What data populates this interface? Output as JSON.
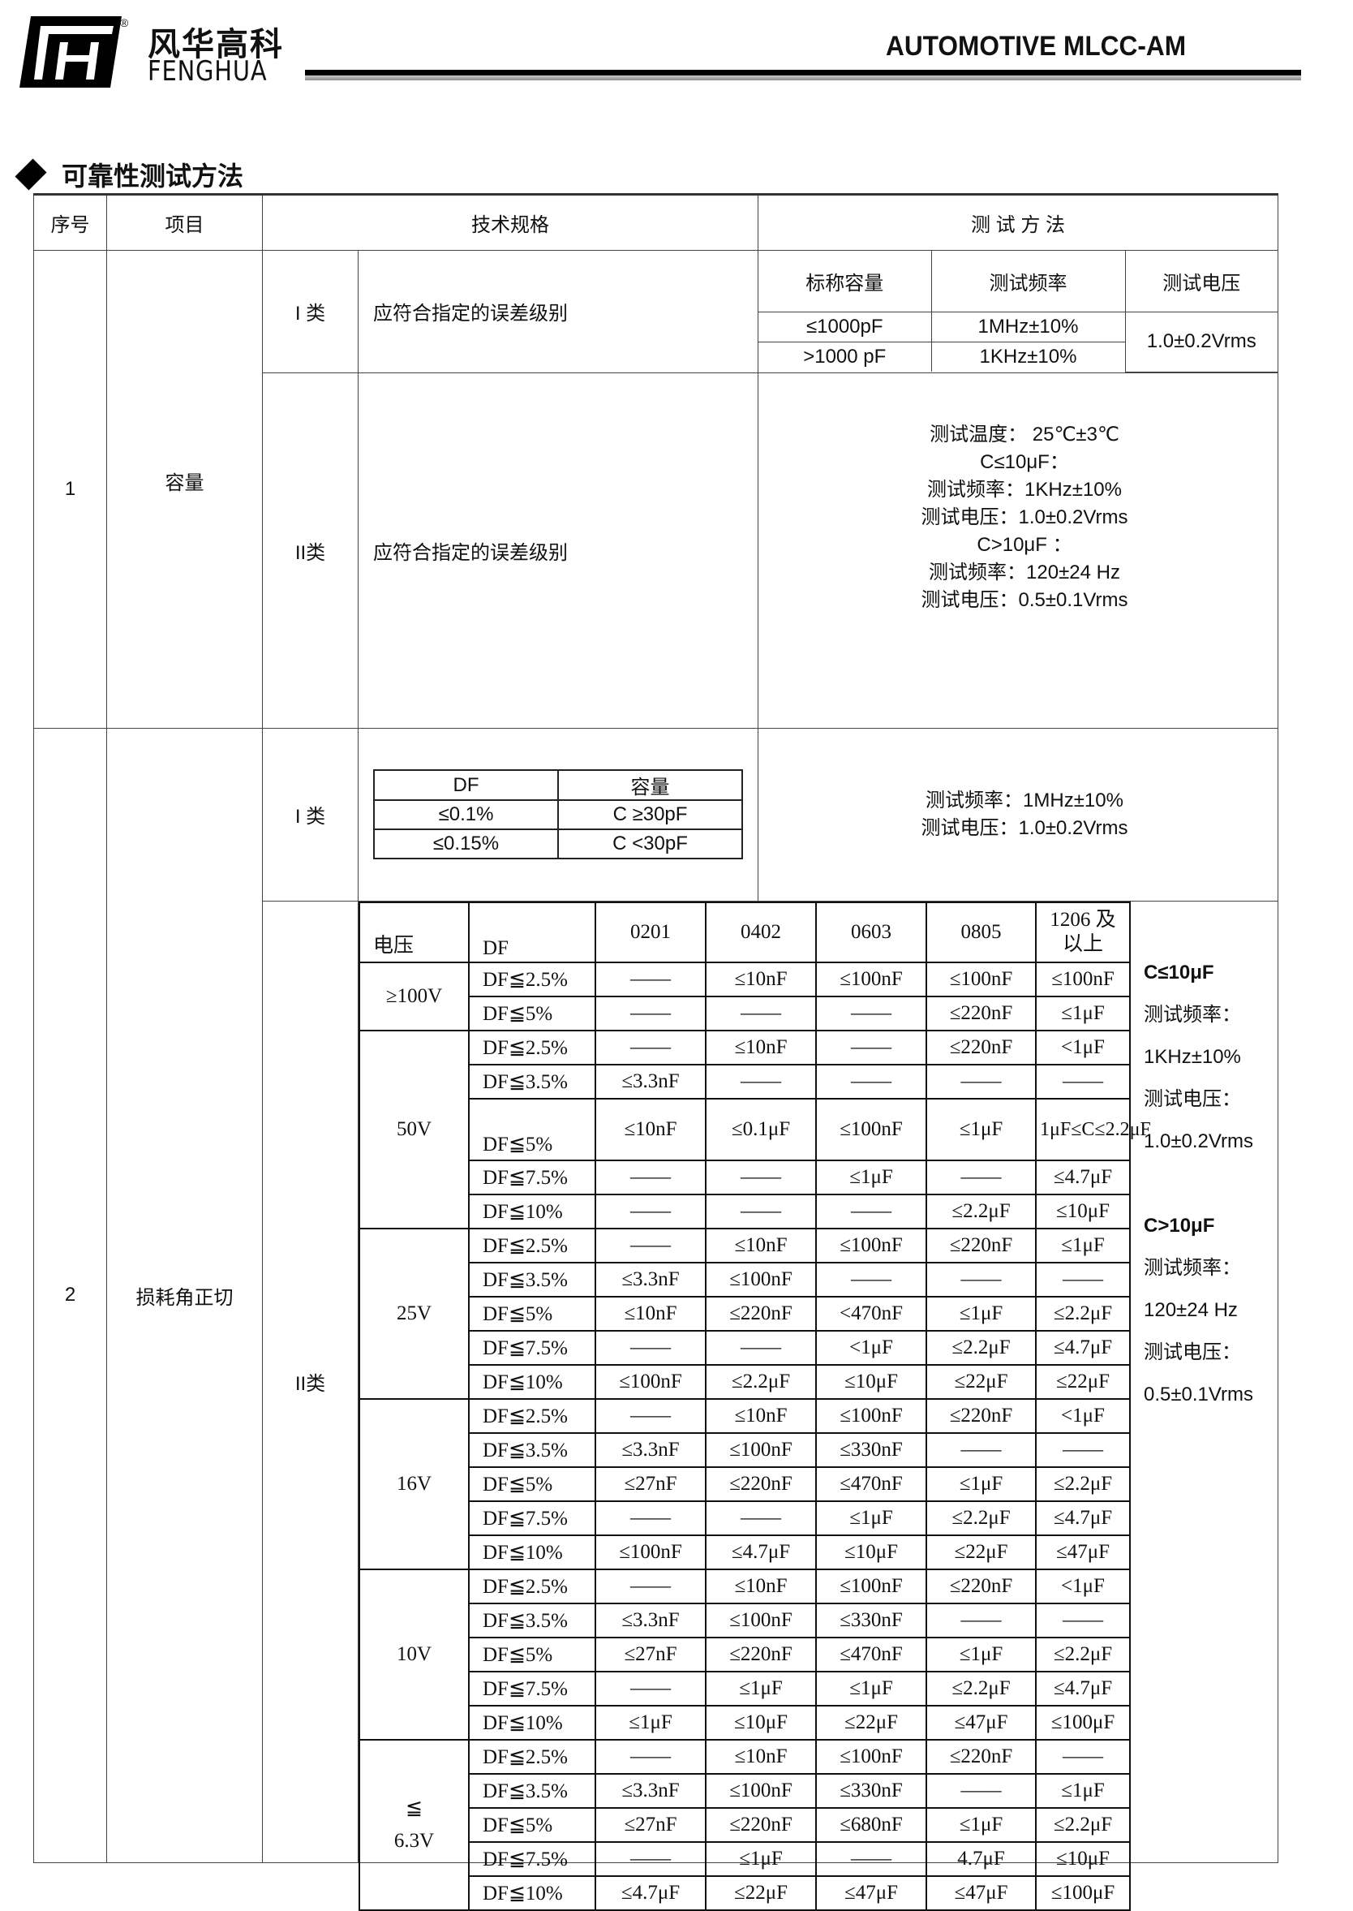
{
  "header": {
    "logo_cn": "风华高科",
    "logo_en": "FENGHUA",
    "registered": "®",
    "doc_title": "AUTOMOTIVE MLCC-AM",
    "section_title": "可靠性测试方法",
    "icon": "diamond-bullet-icon"
  },
  "table": {
    "headers": {
      "no": "序号",
      "item": "项目",
      "spec": "技术规格",
      "method": "测 试 方 法"
    },
    "rows": [
      {
        "no": "1",
        "item": "容量",
        "class1": {
          "label": "I 类",
          "spec": "应符合指定的误差级别",
          "method": {
            "headers": [
              "标称容量",
              "测试频率",
              "测试电压"
            ],
            "rows": [
              [
                "≤1000pF",
                "1MHz±10%"
              ],
              [
                ">1000 pF",
                "1KHz±10%"
              ]
            ],
            "voltage": "1.0±0.2Vrms"
          }
        },
        "class2": {
          "label": "II类",
          "spec": "应符合指定的误差级别",
          "method_lines": [
            "测试温度：  25℃±3℃",
            "C≤10μF：",
            "测试频率：1KHz±10%",
            "测试电压：1.0±0.2Vrms",
            "C>10μF    ：",
            "测试频率：120±24 Hz",
            "测试电压：0.5±0.1Vrms"
          ]
        }
      },
      {
        "no": "2",
        "item": "损耗角正切",
        "class1": {
          "label": "I 类",
          "df_table": {
            "headers": [
              "DF",
              "容量"
            ],
            "rows": [
              [
                "≤0.1%",
                "C ≥30pF"
              ],
              [
                "≤0.15%",
                "C <30pF"
              ]
            ]
          },
          "method_lines": [
            "测试频率：1MHz±10%",
            "测试电压：1.0±0.2Vrms"
          ]
        },
        "class2": {
          "label": "II类",
          "df_table": {
            "headers": {
              "voltage": "电压",
              "df": "DF",
              "sizes": [
                "0201",
                "0402",
                "0603",
                "0805",
                "1206 及\n以上"
              ]
            },
            "groups": [
              {
                "voltage": "≥100V",
                "rows": [
                  [
                    "DF≦2.5%",
                    "——",
                    "≤10nF",
                    "≤100nF",
                    "≤100nF",
                    "≤100nF"
                  ],
                  [
                    "DF≦5%",
                    "——",
                    "——",
                    "——",
                    "≤220nF",
                    "≤1μF"
                  ]
                ]
              },
              {
                "voltage": "50V",
                "rows": [
                  [
                    "DF≦2.5%",
                    "——",
                    "≤10nF",
                    "——",
                    "≤220nF",
                    "<1μF"
                  ],
                  [
                    "DF≦3.5%",
                    "≤3.3nF",
                    "——",
                    "——",
                    "——",
                    "——"
                  ],
                  [
                    "DF≦5%",
                    "≤10nF",
                    "≤0.1μF",
                    "≤100nF",
                    "≤1μF",
                    "1μF≤C≤2.2μF"
                  ],
                  [
                    "DF≦7.5%",
                    "——",
                    "——",
                    "≤1μF",
                    "——",
                    "≤4.7μF"
                  ],
                  [
                    "DF≦10%",
                    "——",
                    "——",
                    "——",
                    "≤2.2μF",
                    "≤10μF"
                  ]
                ]
              },
              {
                "voltage": "25V",
                "rows": [
                  [
                    "DF≦2.5%",
                    "——",
                    "≤10nF",
                    "≤100nF",
                    "≤220nF",
                    "≤1μF"
                  ],
                  [
                    "DF≦3.5%",
                    "≤3.3nF",
                    "≤100nF",
                    "——",
                    "——",
                    "——"
                  ],
                  [
                    "DF≦5%",
                    "≤10nF",
                    "≤220nF",
                    "<470nF",
                    "≤1μF",
                    "≤2.2μF"
                  ],
                  [
                    "DF≦7.5%",
                    "——",
                    "——",
                    "<1μF",
                    "≤2.2μF",
                    "≤4.7μF"
                  ],
                  [
                    "DF≦10%",
                    "≤100nF",
                    "≤2.2μF",
                    "≤10μF",
                    "≤22μF",
                    "≤22μF"
                  ]
                ]
              },
              {
                "voltage": "16V",
                "rows": [
                  [
                    "DF≦2.5%",
                    "——",
                    "≤10nF",
                    "≤100nF",
                    "≤220nF",
                    "<1μF"
                  ],
                  [
                    "DF≦3.5%",
                    "≤3.3nF",
                    "≤100nF",
                    "≤330nF",
                    "——",
                    "——"
                  ],
                  [
                    "DF≦5%",
                    "≤27nF",
                    "≤220nF",
                    "≤470nF",
                    "≤1μF",
                    "≤2.2μF"
                  ],
                  [
                    "DF≦7.5%",
                    "——",
                    "——",
                    "≤1μF",
                    "≤2.2μF",
                    "≤4.7μF"
                  ],
                  [
                    "DF≦10%",
                    "≤100nF",
                    "≤4.7μF",
                    "≤10μF",
                    "≤22μF",
                    "≤47μF"
                  ]
                ]
              },
              {
                "voltage": "10V",
                "rows": [
                  [
                    "DF≦2.5%",
                    "——",
                    "≤10nF",
                    "≤100nF",
                    "≤220nF",
                    "<1μF"
                  ],
                  [
                    "DF≦3.5%",
                    "≤3.3nF",
                    "≤100nF",
                    "≤330nF",
                    "——",
                    "——"
                  ],
                  [
                    "DF≦5%",
                    "≤27nF",
                    "≤220nF",
                    "≤470nF",
                    "≤1μF",
                    "≤2.2μF"
                  ],
                  [
                    "DF≦7.5%",
                    "——",
                    "≤1μF",
                    "≤1μF",
                    "≤2.2μF",
                    "≤4.7μF"
                  ],
                  [
                    "DF≦10%",
                    "≤1μF",
                    "≤10μF",
                    "≤22μF",
                    "≤47μF",
                    "≤100μF"
                  ]
                ]
              },
              {
                "voltage": "≦\n6.3V",
                "rows": [
                  [
                    "DF≦2.5%",
                    "——",
                    "≤10nF",
                    "≤100nF",
                    "≤220nF",
                    "——"
                  ],
                  [
                    "DF≦3.5%",
                    "≤3.3nF",
                    "≤100nF",
                    "≤330nF",
                    "——",
                    "≤1μF"
                  ],
                  [
                    "DF≦5%",
                    "≤27nF",
                    "≤220nF",
                    "≤680nF",
                    "≤1μF",
                    "≤2.2μF"
                  ],
                  [
                    "DF≦7.5%",
                    "——",
                    "≤1μF",
                    "——",
                    "4.7μF",
                    "≤10μF"
                  ],
                  [
                    "DF≦10%",
                    "≤4.7μF",
                    "≤22μF",
                    "≤47μF",
                    "≤47μF",
                    "≤100μF"
                  ]
                ]
              }
            ]
          },
          "method_lines": [
            {
              "text": "C≤10μF",
              "bold": true
            },
            {
              "text": "测试频率："
            },
            {
              "text": "1KHz±10%"
            },
            {
              "text": "测试电压："
            },
            {
              "text": "1.0±0.2Vrms"
            },
            {
              "text": ""
            },
            {
              "text": "C>10μF",
              "bold": true
            },
            {
              "text": "测试频率："
            },
            {
              "text": "120±24 Hz"
            },
            {
              "text": "测试电压："
            },
            {
              "text": "0.5±0.1Vrms"
            }
          ]
        }
      }
    ]
  }
}
